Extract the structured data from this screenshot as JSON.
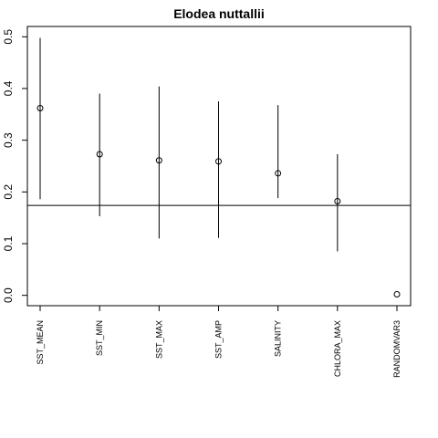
{
  "chart_data": {
    "type": "scatter",
    "title": "Elodea nuttallii",
    "xlabel": "",
    "ylabel": "",
    "categories": [
      "SST_MEAN",
      "SST_MIN",
      "SST_MAX",
      "SST_AMP",
      "SALINITY",
      "CHLORA_MAX",
      "RANDOMVAR3"
    ],
    "values": [
      0.362,
      0.273,
      0.261,
      0.259,
      0.236,
      0.182,
      0.002
    ],
    "lower": [
      0.186,
      0.153,
      0.11,
      0.111,
      0.188,
      0.085,
      null
    ],
    "upper": [
      0.498,
      0.39,
      0.404,
      0.375,
      0.368,
      0.273,
      null
    ],
    "reference_line": 0.174,
    "ylim": [
      -0.02,
      0.52
    ],
    "yticks": [
      0.0,
      0.1,
      0.2,
      0.3,
      0.4,
      0.5
    ],
    "ytick_labels": [
      "0.0",
      "0.1",
      "0.2",
      "0.3",
      "0.4",
      "0.5"
    ],
    "grid": false
  }
}
